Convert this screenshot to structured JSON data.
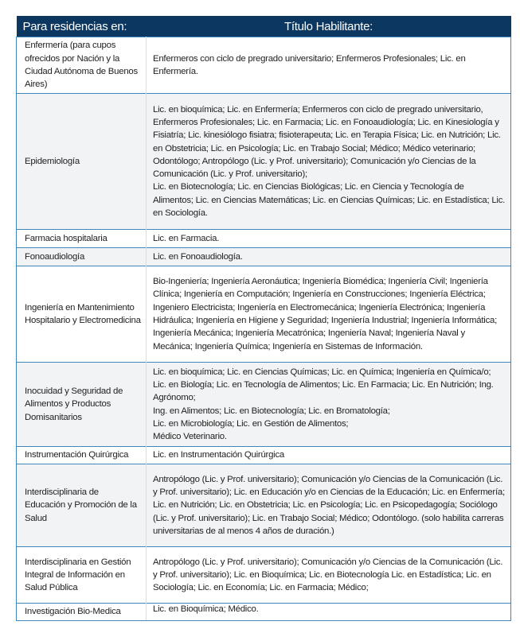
{
  "header": {
    "col1": "Para residencias en:",
    "col2": "Título Habilitante:"
  },
  "colors": {
    "header_bg": "#0c3760",
    "border": "#3f86bd",
    "alt_row": "#f1f3f5"
  },
  "rows": [
    {
      "residencia": "Enfermería (para cupos ofrecidos por Nación y la Ciudad Autónoma de Buenos Aires)",
      "titulo": "Enfermeros con ciclo de pregrado universitario; Enfermeros Profesionales; Lic. en Enfermería."
    },
    {
      "residencia": "Epidemiología",
      "titulo": "Lic. en bioquímica; Lic. en Enfermería; Enfermeros con ciclo de pregrado universitario, Enfermeros Profesionales; Lic. en Farmacia; Lic. en Fonoaudiología; Lic. en Kinesiología y Fisiatría; Lic. kinesiólogo fisiatra; fisioterapeuta; Lic. en Terapia Física; Lic. en Nutrición; Lic. en Obstetricia; Lic. en Psicología; Lic. en Trabajo Social; Médico; Médico veterinario; Odontólogo; Antropólogo (Lic. y Prof. universitario); Comunicación y/o Ciencias de la Comunicación (Lic. y Prof. universitario);",
      "titulo_2": "Lic. en Biotecnología; Lic. en Ciencias Biológicas; Lic. en Ciencia y Tecnología de Alimentos; Lic. en Ciencias Matemáticas; Lic. en Ciencias Químicas; Lic. en Estadística; Lic. en Sociología."
    },
    {
      "residencia": "Farmacia hospitalaria",
      "titulo": "Lic. en Farmacia."
    },
    {
      "residencia": "Fonoaudiología",
      "titulo": "Lic. en Fonoaudiología."
    },
    {
      "residencia": "Ingeniería en Mantenimiento Hospitalario y Electromedicina",
      "titulo": "Bio-Ingeniería; Ingeniería Aeronáutica; Ingeniería Biomédica; Ingeniería Civil; Ingeniería Clínica; Ingeniería en Computación; Ingeniería en Construcciones; Ingeniería Eléctrica; Ingeniero Electricista; Ingeniería en Electromecánica; Ingeniería Electrónica; Ingeniería Hidráulica; Ingeniería en Higiene y Seguridad; Ingeniería Industrial; Ingeniería Informática; Ingeniería Mecánica; Ingeniería Mecatrónica; Ingeniería Naval; Ingeniería Naval y Mecánica; Ingeniería Química; Ingeniería en Sistemas de Información."
    },
    {
      "residencia": "Inocuidad y Seguridad de Alimentos y Productos Domisanitarios",
      "titulo": "Lic. en bioquímica; Lic. en Ciencias Químicas; Lic. en Química; Ingeniería en Química/o; Lic. en Biología; Lic. en Tecnología de Alimentos; Lic. En Farmacia; Lic. En Nutrición; Ing. Agrónomo;",
      "titulo_2": "Ing. en Alimentos; Lic. en Biotecnología; Lic. en Bromatología;",
      "titulo_3": "Lic. en Microbiología; Lic. en Gestión de Alimentos;",
      "titulo_4": "Médico Veterinario."
    },
    {
      "residencia": "Instrumentación Quirúrgica",
      "titulo": "Lic. en Instrumentación Quirúrgica"
    },
    {
      "residencia": "Interdisciplinaria de Educación y Promoción de la Salud",
      "titulo": "Antropólogo (Lic. y Prof. universitario); Comunicación y/o Ciencias de la Comunicación (Lic. y Prof. universitario); Lic. en Educación y/o en Ciencias de la Educación; Lic. en Enfermería; Lic. en Nutrición; Lic. en Obstetricia; Lic. en Psicología; Lic. en Psicopedagogía; Sociólogo (Lic. y Prof. universitario); Lic. en Trabajo Social; Médico; Odontólogo. (solo habilita carreras universitarias de al menos 4 años de duración.)"
    },
    {
      "residencia": "Interdisciplinaria en Gestión Integral de Información en Salud Pública",
      "titulo": "Antropólogo (Lic. y Prof. universitario); Comunicación y/o Ciencias de la Comunicación (Lic. y Prof. universitario); Lic. en Bioquímica; Lic. en Biotecnología Lic. en Estadística; Lic. en Sociología; Lic. en Economía; Lic. en Farmacia; Médico;"
    },
    {
      "residencia": "Investigación Bio-Medica",
      "titulo": "Lic. en Bioquímica; Médico."
    }
  ]
}
